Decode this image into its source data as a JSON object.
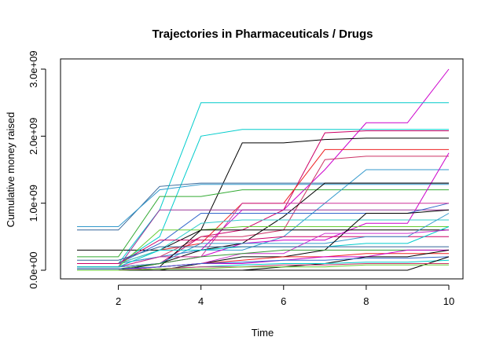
{
  "chart_data": {
    "type": "line",
    "title": "Trajectories in Pharmaceuticals / Drugs",
    "xlabel": "Time",
    "ylabel": "Cumulative money raised",
    "xlim": [
      1,
      10
    ],
    "ylim": [
      0,
      3000000000
    ],
    "x_ticks": [
      2,
      4,
      6,
      8,
      10
    ],
    "x_tick_labels": [
      "2",
      "4",
      "6",
      "8",
      "10"
    ],
    "y_ticks": [
      0,
      1000000000,
      2000000000,
      3000000000
    ],
    "y_tick_labels": [
      "0.0e+00",
      "1.0e+09",
      "2.0e+09",
      "3.0e+09"
    ],
    "grid": false,
    "legend": "none",
    "x": [
      1,
      2,
      3,
      4,
      5,
      6,
      7,
      8,
      9,
      10
    ],
    "series": [
      {
        "color": "#CC00CC",
        "values": [
          100000000.0,
          100000000.0,
          200000000.0,
          300000000.0,
          900000000.0,
          900000000.0,
          1500000000.0,
          2200000000.0,
          2200000000.0,
          3000000000.0
        ]
      },
      {
        "color": "#00CCCC",
        "values": [
          100000000.0,
          100000000.0,
          900000000.0,
          2500000000.0,
          2500000000.0,
          2500000000.0,
          2500000000.0,
          2500000000.0,
          2500000000.0,
          2500000000.0
        ]
      },
      {
        "color": "#000000",
        "values": [
          300000000.0,
          300000000.0,
          300000000.0,
          600000000.0,
          1900000000.0,
          1900000000.0,
          1950000000.0,
          1970000000.0,
          1970000000.0,
          1970000000.0
        ]
      },
      {
        "color": "#00CCCC",
        "values": [
          100000000.0,
          100000000.0,
          500000000.0,
          2000000000.0,
          2100000000.0,
          2100000000.0,
          2100000000.0,
          2100000000.0,
          2100000000.0,
          2100000000.0
        ]
      },
      {
        "color": "#CC0066",
        "values": [
          50000000.0,
          50000000.0,
          100000000.0,
          500000000.0,
          600000000.0,
          900000000.0,
          2050000000.0,
          2080000000.0,
          2080000000.0,
          2080000000.0
        ]
      },
      {
        "color": "#336699",
        "values": [
          600000000.0,
          600000000.0,
          1250000000.0,
          1300000000.0,
          1300000000.0,
          1300000000.0,
          1300000000.0,
          1300000000.0,
          1300000000.0,
          1300000000.0
        ]
      },
      {
        "color": "#3399CC",
        "values": [
          650000000.0,
          650000000.0,
          1200000000.0,
          1280000000.0,
          1280000000.0,
          1280000000.0,
          1280000000.0,
          1280000000.0,
          1280000000.0,
          1280000000.0
        ]
      },
      {
        "color": "#33AA33",
        "values": [
          200000000.0,
          200000000.0,
          1100000000.0,
          1100000000.0,
          1200000000.0,
          1200000000.0,
          1200000000.0,
          1200000000.0,
          1200000000.0,
          1200000000.0
        ]
      },
      {
        "color": "#EE2222",
        "values": [
          100000000.0,
          100000000.0,
          300000000.0,
          400000000.0,
          1000000000.0,
          1000000000.0,
          1800000000.0,
          1800000000.0,
          1800000000.0,
          1800000000.0
        ]
      },
      {
        "color": "#CC3366",
        "values": [
          50000000.0,
          50000000.0,
          200000000.0,
          500000000.0,
          500000000.0,
          600000000.0,
          1650000000.0,
          1700000000.0,
          1700000000.0,
          1700000000.0
        ]
      },
      {
        "color": "#3399CC",
        "values": [
          100000000.0,
          100000000.0,
          200000000.0,
          300000000.0,
          300000000.0,
          500000000.0,
          1000000000.0,
          1500000000.0,
          1500000000.0,
          1500000000.0
        ]
      },
      {
        "color": "#CC00CC",
        "values": [
          50000000.0,
          50000000.0,
          100000000.0,
          200000000.0,
          400000000.0,
          450000000.0,
          450000000.0,
          700000000.0,
          700000000.0,
          1750000000.0
        ]
      },
      {
        "color": "#000000",
        "values": [
          0.0,
          0.0,
          100000000.0,
          300000000.0,
          400000000.0,
          800000000.0,
          1300000000.0,
          1300000000.0,
          1300000000.0,
          1300000000.0
        ]
      },
      {
        "color": "#993399",
        "values": [
          50000000.0,
          50000000.0,
          900000000.0,
          900000000.0,
          900000000.0,
          900000000.0,
          900000000.0,
          900000000.0,
          900000000.0,
          900000000.0
        ]
      },
      {
        "color": "#3366CC",
        "values": [
          100000000.0,
          100000000.0,
          400000000.0,
          850000000.0,
          850000000.0,
          850000000.0,
          850000000.0,
          850000000.0,
          850000000.0,
          1000000000.0
        ]
      },
      {
        "color": "#CC3399",
        "values": [
          50000000.0,
          50000000.0,
          200000000.0,
          200000000.0,
          1000000000.0,
          1000000000.0,
          1000000000.0,
          1000000000.0,
          1000000000.0,
          1000000000.0
        ]
      },
      {
        "color": "#33CCCC",
        "values": [
          100000000.0,
          100000000.0,
          300000000.0,
          700000000.0,
          750000000.0,
          750000000.0,
          750000000.0,
          750000000.0,
          750000000.0,
          750000000.0
        ]
      },
      {
        "color": "#66CC33",
        "values": [
          50000000.0,
          50000000.0,
          600000000.0,
          600000000.0,
          650000000.0,
          650000000.0,
          650000000.0,
          650000000.0,
          650000000.0,
          650000000.0
        ]
      },
      {
        "color": "#000000",
        "values": [
          0.0,
          0.0,
          50000000.0,
          600000000.0,
          600000000.0,
          600000000.0,
          600000000.0,
          600000000.0,
          600000000.0,
          600000000.0
        ]
      },
      {
        "color": "#CC0066",
        "values": [
          100000000.0,
          100000000.0,
          450000000.0,
          450000000.0,
          450000000.0,
          500000000.0,
          500000000.0,
          500000000.0,
          500000000.0,
          500000000.0
        ]
      },
      {
        "color": "#3399CC",
        "values": [
          50000000.0,
          50000000.0,
          100000000.0,
          400000000.0,
          400000000.0,
          400000000.0,
          400000000.0,
          500000000.0,
          500000000.0,
          850000000.0
        ]
      },
      {
        "color": "#000000",
        "values": [
          0.0,
          0.0,
          0.0,
          100000000.0,
          200000000.0,
          200000000.0,
          300000000.0,
          850000000.0,
          850000000.0,
          900000000.0
        ]
      },
      {
        "color": "#00CCCC",
        "values": [
          50000000.0,
          50000000.0,
          300000000.0,
          300000000.0,
          350000000.0,
          350000000.0,
          350000000.0,
          400000000.0,
          400000000.0,
          650000000.0
        ]
      },
      {
        "color": "#CC33CC",
        "values": [
          20000000.0,
          20000000.0,
          50000000.0,
          100000000.0,
          250000000.0,
          250000000.0,
          550000000.0,
          550000000.0,
          550000000.0,
          600000000.0
        ]
      },
      {
        "color": "#336699",
        "values": [
          150000000.0,
          150000000.0,
          350000000.0,
          350000000.0,
          350000000.0,
          350000000.0,
          350000000.0,
          350000000.0,
          350000000.0,
          350000000.0
        ]
      },
      {
        "color": "#339933",
        "values": [
          20000000.0,
          20000000.0,
          100000000.0,
          200000000.0,
          250000000.0,
          300000000.0,
          300000000.0,
          300000000.0,
          300000000.0,
          300000000.0
        ]
      },
      {
        "color": "#EE2222",
        "values": [
          0.0,
          0.0,
          50000000.0,
          100000000.0,
          150000000.0,
          200000000.0,
          200000000.0,
          250000000.0,
          250000000.0,
          250000000.0
        ]
      },
      {
        "color": "#CC00CC",
        "values": [
          0.0,
          0.0,
          50000000.0,
          100000000.0,
          100000000.0,
          150000000.0,
          200000000.0,
          200000000.0,
          300000000.0,
          300000000.0
        ]
      },
      {
        "color": "#000000",
        "values": [
          0.0,
          0.0,
          0.0,
          0.0,
          0.0,
          50000000.0,
          100000000.0,
          200000000.0,
          200000000.0,
          300000000.0
        ]
      },
      {
        "color": "#3366CC",
        "values": [
          20000000.0,
          20000000.0,
          50000000.0,
          100000000.0,
          120000000.0,
          150000000.0,
          150000000.0,
          180000000.0,
          180000000.0,
          200000000.0
        ]
      },
      {
        "color": "#00CCCC",
        "values": [
          0.0,
          0.0,
          20000000.0,
          50000000.0,
          80000000.0,
          100000000.0,
          100000000.0,
          120000000.0,
          120000000.0,
          150000000.0
        ]
      },
      {
        "color": "#000000",
        "values": [
          0.0,
          0.0,
          0.0,
          0.0,
          0.0,
          0.0,
          0.0,
          0.0,
          0.0,
          200000000.0
        ]
      },
      {
        "color": "#CC3366",
        "values": [
          0.0,
          0.0,
          20000000.0,
          50000000.0,
          50000000.0,
          80000000.0,
          80000000.0,
          100000000.0,
          100000000.0,
          100000000.0
        ]
      },
      {
        "color": "#66CC33",
        "values": [
          0.0,
          0.0,
          20000000.0,
          20000000.0,
          50000000.0,
          50000000.0,
          50000000.0,
          80000000.0,
          80000000.0,
          80000000.0
        ]
      }
    ]
  }
}
